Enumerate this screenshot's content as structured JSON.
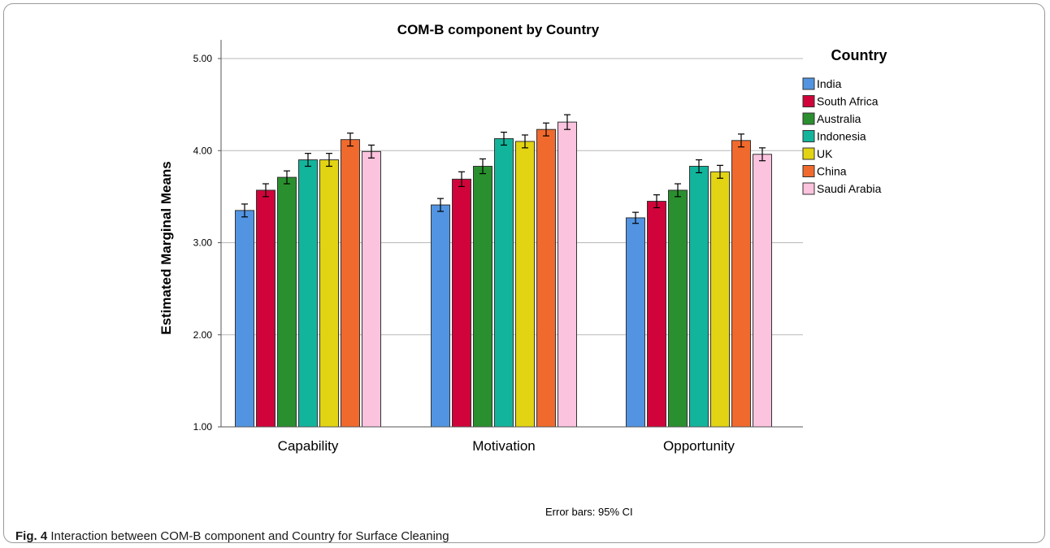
{
  "chart_data": {
    "type": "bar",
    "title": "COM-B component by Country",
    "ylabel": "Estimated Marginal Means",
    "xlabel": "",
    "ylim": [
      1.0,
      5.0
    ],
    "yticks": [
      "1.00",
      "2.00",
      "3.00",
      "4.00",
      "5.00"
    ],
    "grid": true,
    "legend_title": "Country",
    "legend_position": "right",
    "categories": [
      "Capability",
      "Motivation",
      "Opportunity"
    ],
    "series": [
      {
        "name": "India",
        "color": "#5294e2",
        "values": [
          3.35,
          3.41,
          3.27
        ],
        "ci": [
          0.07,
          0.07,
          0.06
        ]
      },
      {
        "name": "South Africa",
        "color": "#d0043a",
        "values": [
          3.57,
          3.69,
          3.45
        ],
        "ci": [
          0.07,
          0.08,
          0.07
        ]
      },
      {
        "name": "Australia",
        "color": "#2a8f2e",
        "values": [
          3.71,
          3.83,
          3.57
        ],
        "ci": [
          0.07,
          0.08,
          0.07
        ]
      },
      {
        "name": "Indonesia",
        "color": "#13b49c",
        "values": [
          3.9,
          4.13,
          3.83
        ],
        "ci": [
          0.07,
          0.07,
          0.07
        ]
      },
      {
        "name": "UK",
        "color": "#e2d413",
        "values": [
          3.9,
          4.1,
          3.77
        ],
        "ci": [
          0.07,
          0.07,
          0.07
        ]
      },
      {
        "name": "China",
        "color": "#f16a2d",
        "values": [
          4.12,
          4.23,
          4.11
        ],
        "ci": [
          0.07,
          0.07,
          0.07
        ]
      },
      {
        "name": "Saudi Arabia",
        "color": "#fbc3de",
        "values": [
          3.99,
          4.31,
          3.96
        ],
        "ci": [
          0.07,
          0.08,
          0.07
        ]
      }
    ],
    "note": "Error bars: 95% CI"
  },
  "caption": {
    "label": "Fig. 4",
    "text": " Interaction between COM-B component and Country for Surface Cleaning"
  }
}
